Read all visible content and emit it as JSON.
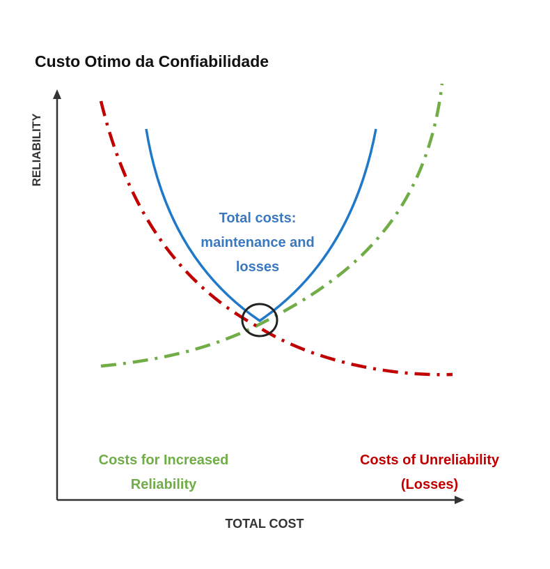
{
  "title": "Custo Otimo da Confiabilidade",
  "y_axis_label": "RELIABILITY",
  "x_axis_label": "TOTAL COST",
  "curves": {
    "total": {
      "lines": [
        "Total costs:",
        "maintenance and",
        "losses"
      ],
      "color": "#2e75c4"
    },
    "increased": {
      "lines": [
        "Costs for Increased",
        "Reliability"
      ],
      "color": "#70ad47"
    },
    "unreliability": {
      "lines": [
        "Costs of Unreliability",
        "(Losses)"
      ],
      "color": "#c00000"
    }
  },
  "optimum_marker": "optimum-point-circle"
}
